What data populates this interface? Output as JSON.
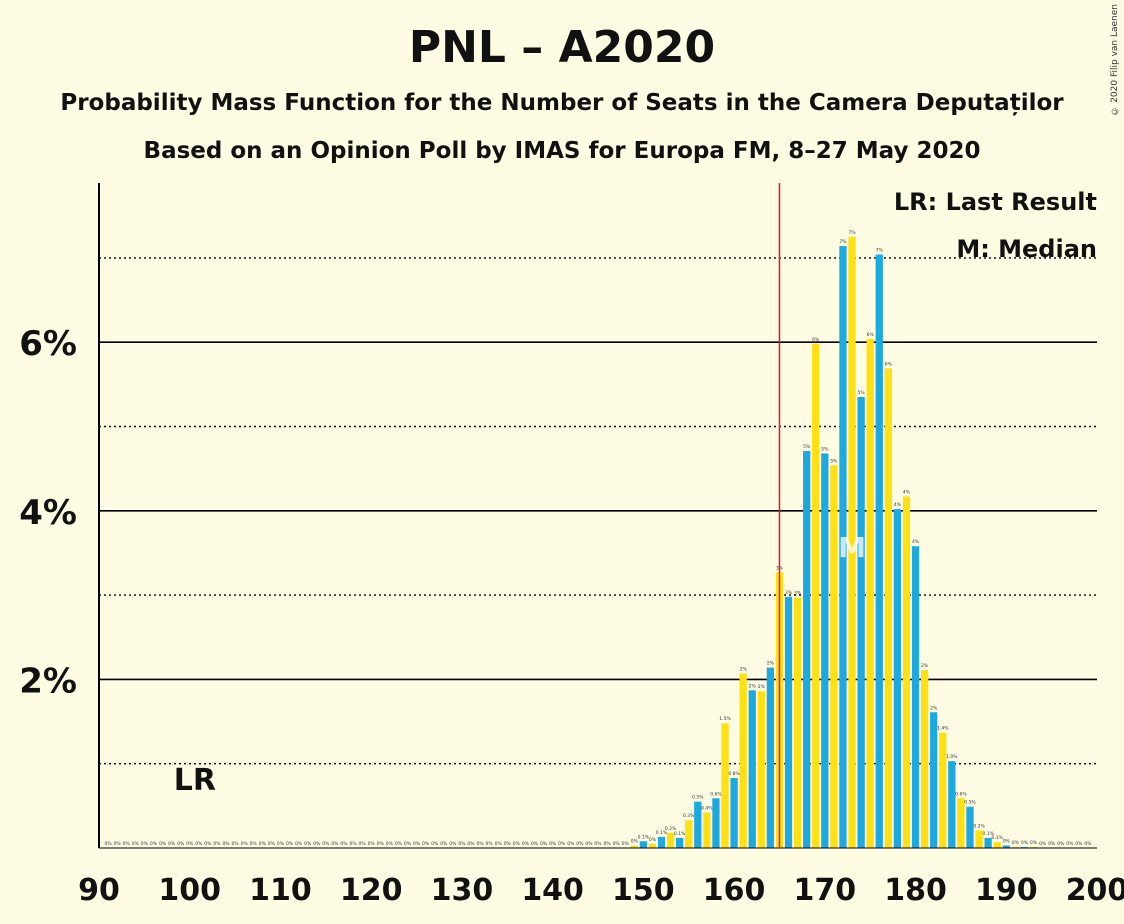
{
  "header": {
    "title": "PNL – A2020",
    "subtitle1": "Probability Mass Function for the Number of Seats in the Camera Deputaților",
    "subtitle2": "Based on an Opinion Poll by IMAS for Europa FM, 8–27 May 2020",
    "copyright": "© 2020 Filip van Laenen"
  },
  "legend": {
    "lr": "LR: Last Result",
    "m": "M: Median"
  },
  "markers": {
    "lr_label": "LR",
    "lr_seats": 100,
    "median_label": "M",
    "median_seats": 173,
    "threshold_seats": 165
  },
  "colors": {
    "blue": "#1BA9E0",
    "yellow": "#FFE012",
    "background": "#FFFCE4",
    "threshold": "#E8141E"
  },
  "chart_data": {
    "type": "bar",
    "xlabel": "",
    "ylabel": "",
    "xlim": [
      90,
      200
    ],
    "ylim": [
      0,
      7.9
    ],
    "x_ticks": [
      "90",
      "100",
      "110",
      "120",
      "130",
      "140",
      "150",
      "160",
      "170",
      "180",
      "190",
      "200"
    ],
    "y_ticks": [
      {
        "value": 2,
        "label": "2%"
      },
      {
        "value": 4,
        "label": "4%"
      },
      {
        "value": 6,
        "label": "6%"
      }
    ],
    "seats_start": 91,
    "values": [
      0,
      0,
      0,
      0,
      0,
      0,
      0,
      0,
      0,
      0,
      0,
      0,
      0,
      0,
      0,
      0,
      0,
      0,
      0,
      0,
      0,
      0,
      0,
      0,
      0,
      0,
      0,
      0,
      0,
      0,
      0,
      0,
      0,
      0,
      0,
      0,
      0,
      0,
      0,
      0,
      0,
      0,
      0,
      0,
      0,
      0,
      0,
      0,
      0,
      0,
      0,
      0,
      0,
      0,
      0,
      0,
      0,
      0,
      0.03,
      0.08,
      0.05,
      0.13,
      0.18,
      0.12,
      0.33,
      0.55,
      0.42,
      0.59,
      1.48,
      0.83,
      2.07,
      1.87,
      1.86,
      2.14,
      3.27,
      2.98,
      2.97,
      4.71,
      5.98,
      4.68,
      4.54,
      7.14,
      7.25,
      5.35,
      6.04,
      7.04,
      5.69,
      4.02,
      4.17,
      3.58,
      2.11,
      1.61,
      1.37,
      1.03,
      0.59,
      0.49,
      0.21,
      0.12,
      0.07,
      0.03,
      0.01,
      0.01,
      0.01,
      0,
      0,
      0,
      0,
      0,
      0
    ],
    "labels": [
      "0%",
      "0%",
      "0%",
      "0%",
      "0%",
      "0%",
      "0%",
      "0%",
      "0%",
      "0%",
      "0%",
      "0%",
      "0%",
      "0%",
      "0%",
      "0%",
      "0%",
      "0%",
      "0%",
      "0%",
      "0%",
      "0%",
      "0%",
      "0%",
      "0%",
      "0%",
      "0%",
      "0%",
      "0%",
      "0%",
      "0%",
      "0%",
      "0%",
      "0%",
      "0%",
      "0%",
      "0%",
      "0%",
      "0%",
      "0%",
      "0%",
      "0%",
      "0%",
      "0%",
      "0%",
      "0%",
      "0%",
      "0%",
      "0%",
      "0%",
      "0%",
      "0%",
      "0%",
      "0%",
      "0%",
      "0%",
      "0%",
      "0%",
      "0%",
      "0.1%",
      "0%",
      "0.1%",
      "0.2%",
      "0.1%",
      "0.3%",
      "0.5%",
      "0.4%",
      "0.6%",
      "1.5%",
      "0.8%",
      "2%",
      "2%",
      "2%",
      "2%",
      "3%",
      "3%",
      "3%",
      "5%",
      "6%",
      "5%",
      "5%",
      "7%",
      "7%",
      "5%",
      "6%",
      "7%",
      "6%",
      "4%",
      "4%",
      "4%",
      "2%",
      "2%",
      "1.4%",
      "1.0%",
      "0.6%",
      "0.5%",
      "0.2%",
      "0.1%",
      "0.1%",
      "0%",
      "0%",
      "0%",
      "0%",
      "0%",
      "0%",
      "0%",
      "0%",
      "0%",
      "0%"
    ]
  }
}
